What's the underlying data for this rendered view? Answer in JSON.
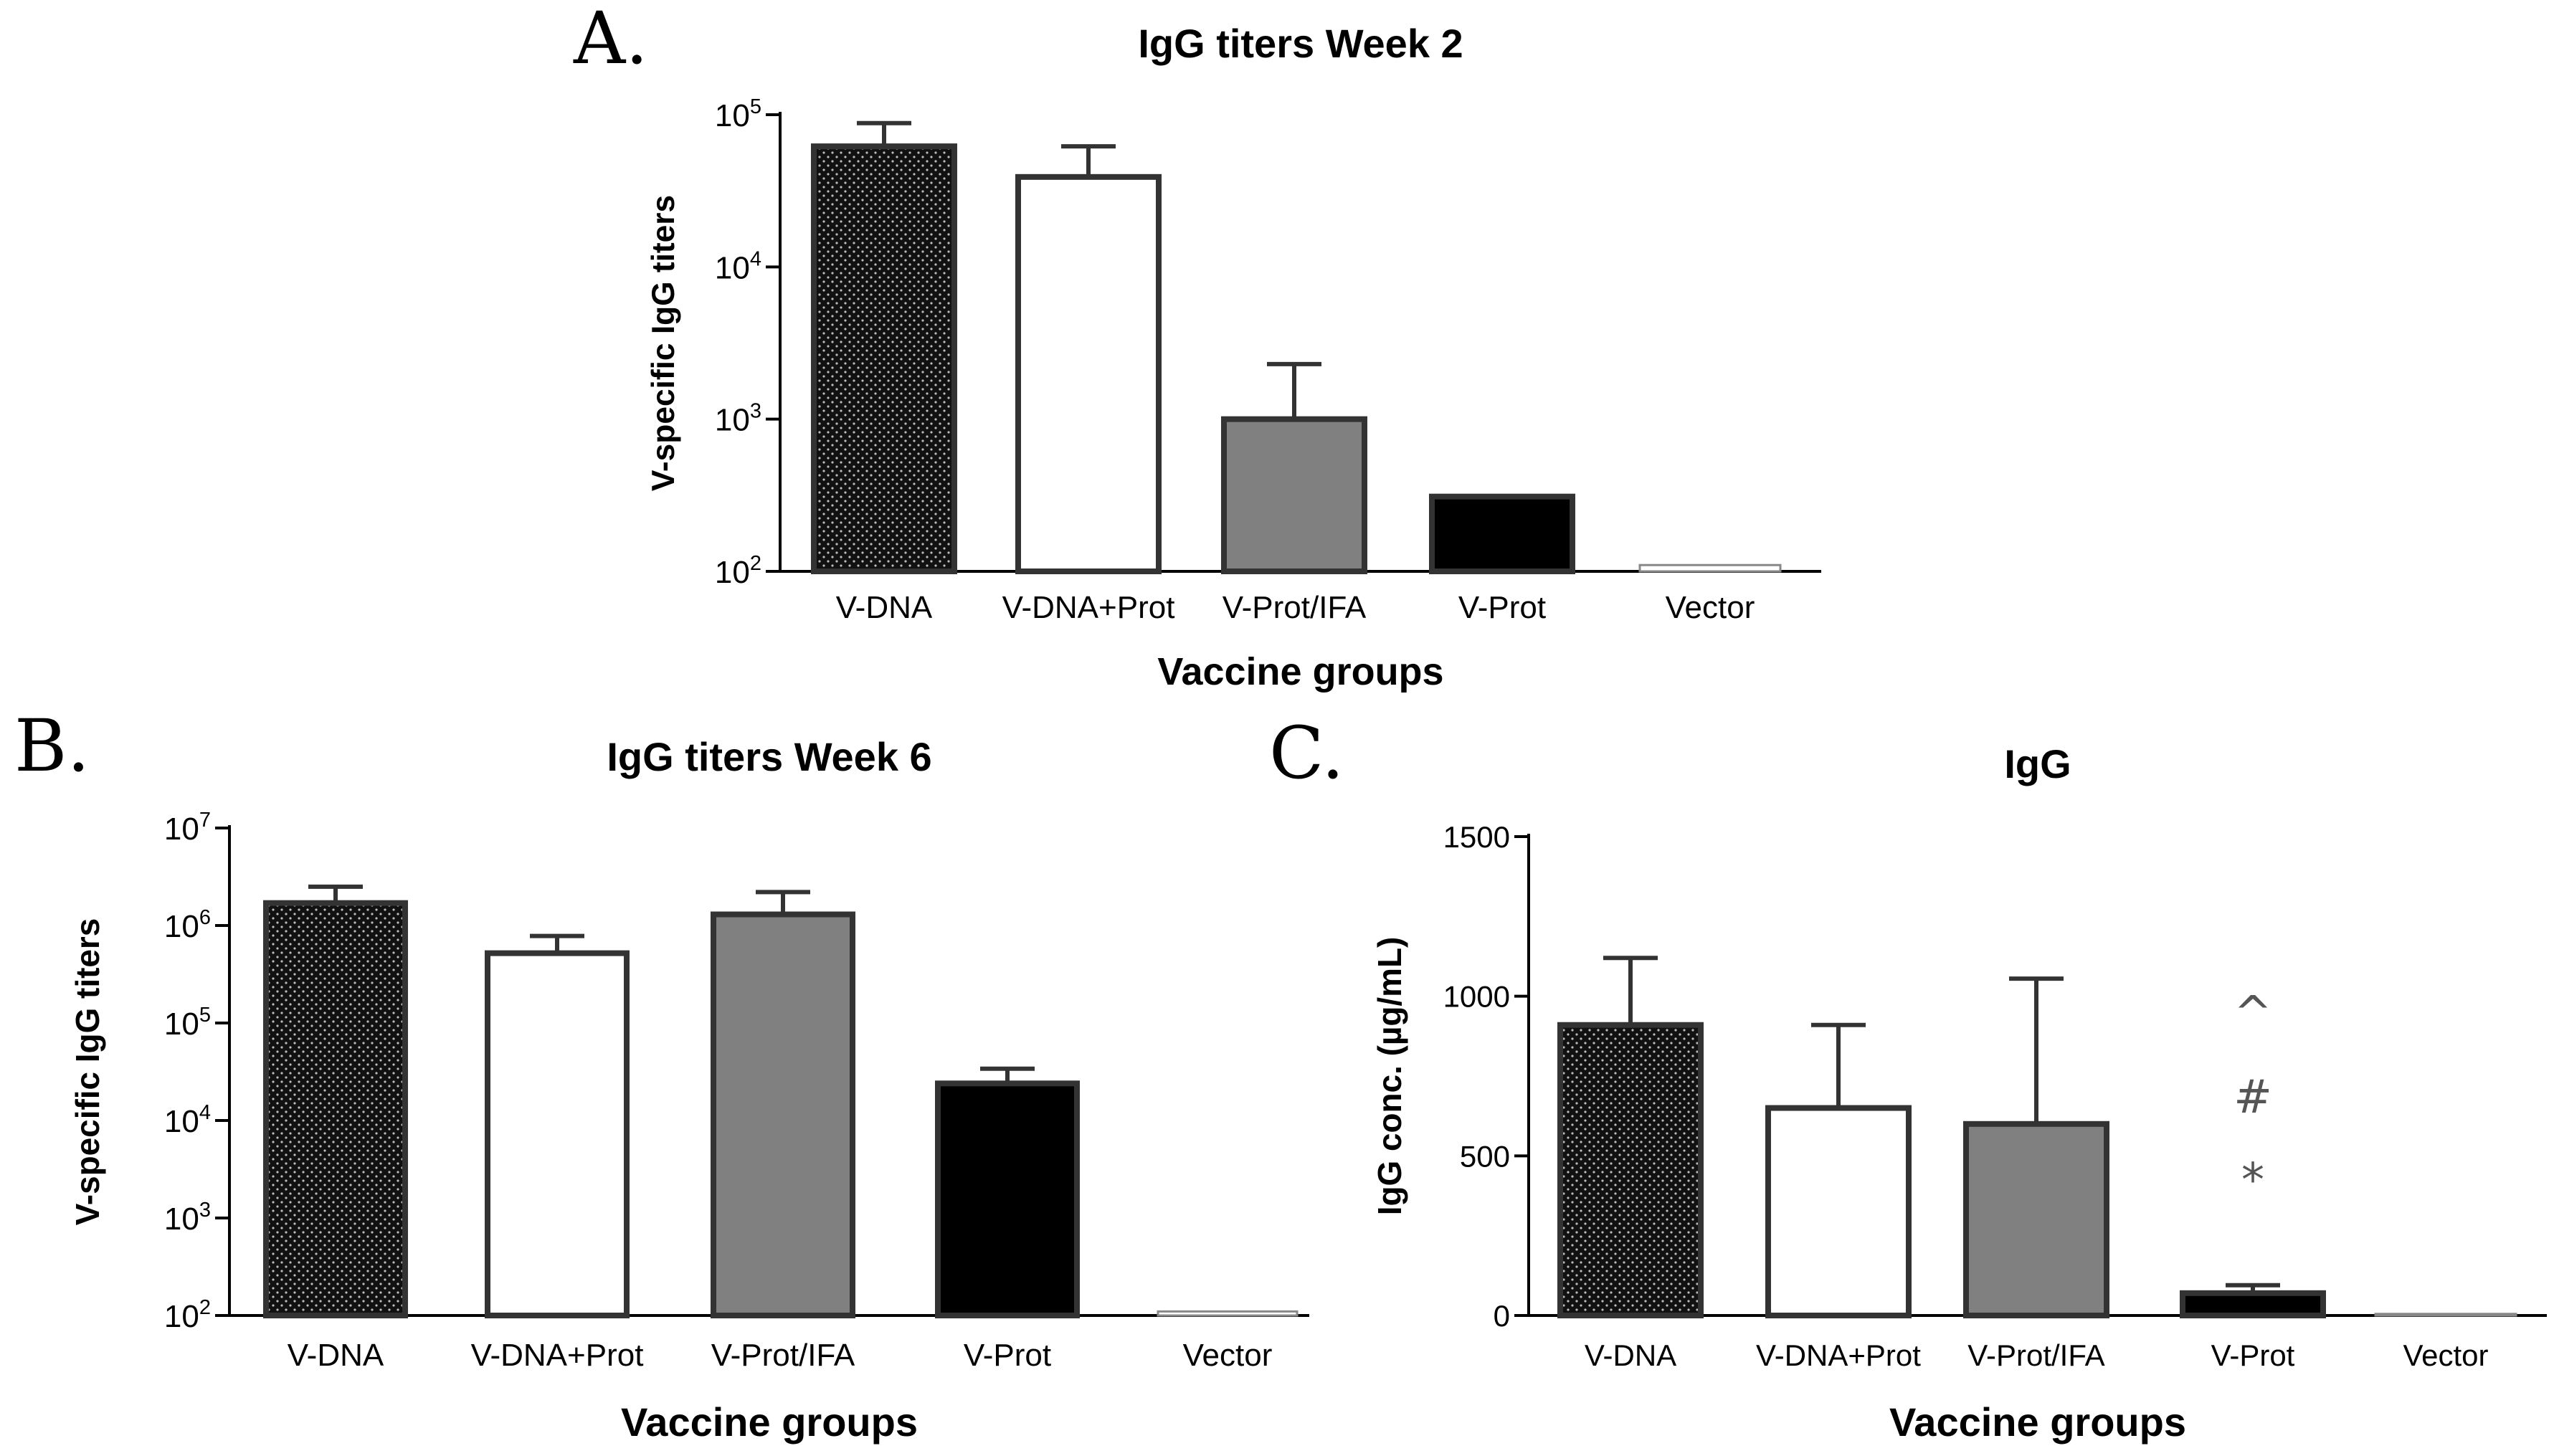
{
  "chart_data": [
    {
      "panel": "A.",
      "type": "bar",
      "title": "IgG titers Week 2",
      "xlabel": "Vaccine groups",
      "ylabel": "V-specific IgG titers",
      "yscale": "log",
      "ylim": [
        100,
        100000
      ],
      "yticks": [
        {
          "base": "10",
          "exp": "2"
        },
        {
          "base": "10",
          "exp": "3"
        },
        {
          "base": "10",
          "exp": "4"
        },
        {
          "base": "10",
          "exp": "5"
        }
      ],
      "categories": [
        "V-DNA",
        "V-DNA+Prot",
        "V-Prot/IFA",
        "V-Prot",
        "Vector"
      ],
      "values": [
        62000,
        39000,
        1000,
        310,
        110
      ],
      "errors": [
        88000,
        62000,
        2300,
        310,
        110
      ],
      "fills": [
        "dotted-black",
        "white",
        "#808080",
        "#000000",
        "white"
      ]
    },
    {
      "panel": "B.",
      "type": "bar",
      "title": "IgG titers Week 6",
      "xlabel": "Vaccine groups",
      "ylabel": "V-specific IgG titers",
      "yscale": "log",
      "ylim": [
        100,
        10000000
      ],
      "yticks": [
        {
          "base": "10",
          "exp": "2"
        },
        {
          "base": "10",
          "exp": "3"
        },
        {
          "base": "10",
          "exp": "4"
        },
        {
          "base": "10",
          "exp": "5"
        },
        {
          "base": "10",
          "exp": "6"
        },
        {
          "base": "10",
          "exp": "7"
        }
      ],
      "categories": [
        "V-DNA",
        "V-DNA+Prot",
        "V-Prot/IFA",
        "V-Prot",
        "Vector"
      ],
      "values": [
        1700000,
        520000,
        1300000,
        24000,
        110
      ],
      "errors": [
        2500000,
        780000,
        2200000,
        34000,
        110
      ],
      "fills": [
        "dotted-black",
        "white",
        "#808080",
        "#000000",
        "white"
      ]
    },
    {
      "panel": "C.",
      "type": "bar",
      "title": "IgG",
      "xlabel": "Vaccine groups",
      "ylabel": "IgG conc. (µg/mL)",
      "yscale": "linear",
      "ylim": [
        0,
        1500
      ],
      "yticks": [
        {
          "base": "0"
        },
        {
          "base": "500"
        },
        {
          "base": "1000"
        },
        {
          "base": "1500"
        }
      ],
      "categories": [
        "V-DNA",
        "V-DNA+Prot",
        "V-Prot/IFA",
        "V-Prot",
        "Vector"
      ],
      "values": [
        910,
        650,
        600,
        70,
        5
      ],
      "errors": [
        1120,
        910,
        1055,
        95,
        5
      ],
      "fills": [
        "dotted-black",
        "white",
        "#808080",
        "#000000",
        "white"
      ],
      "significance": {
        "category": "V-Prot",
        "marks": [
          "^",
          "#",
          "*"
        ]
      }
    }
  ]
}
